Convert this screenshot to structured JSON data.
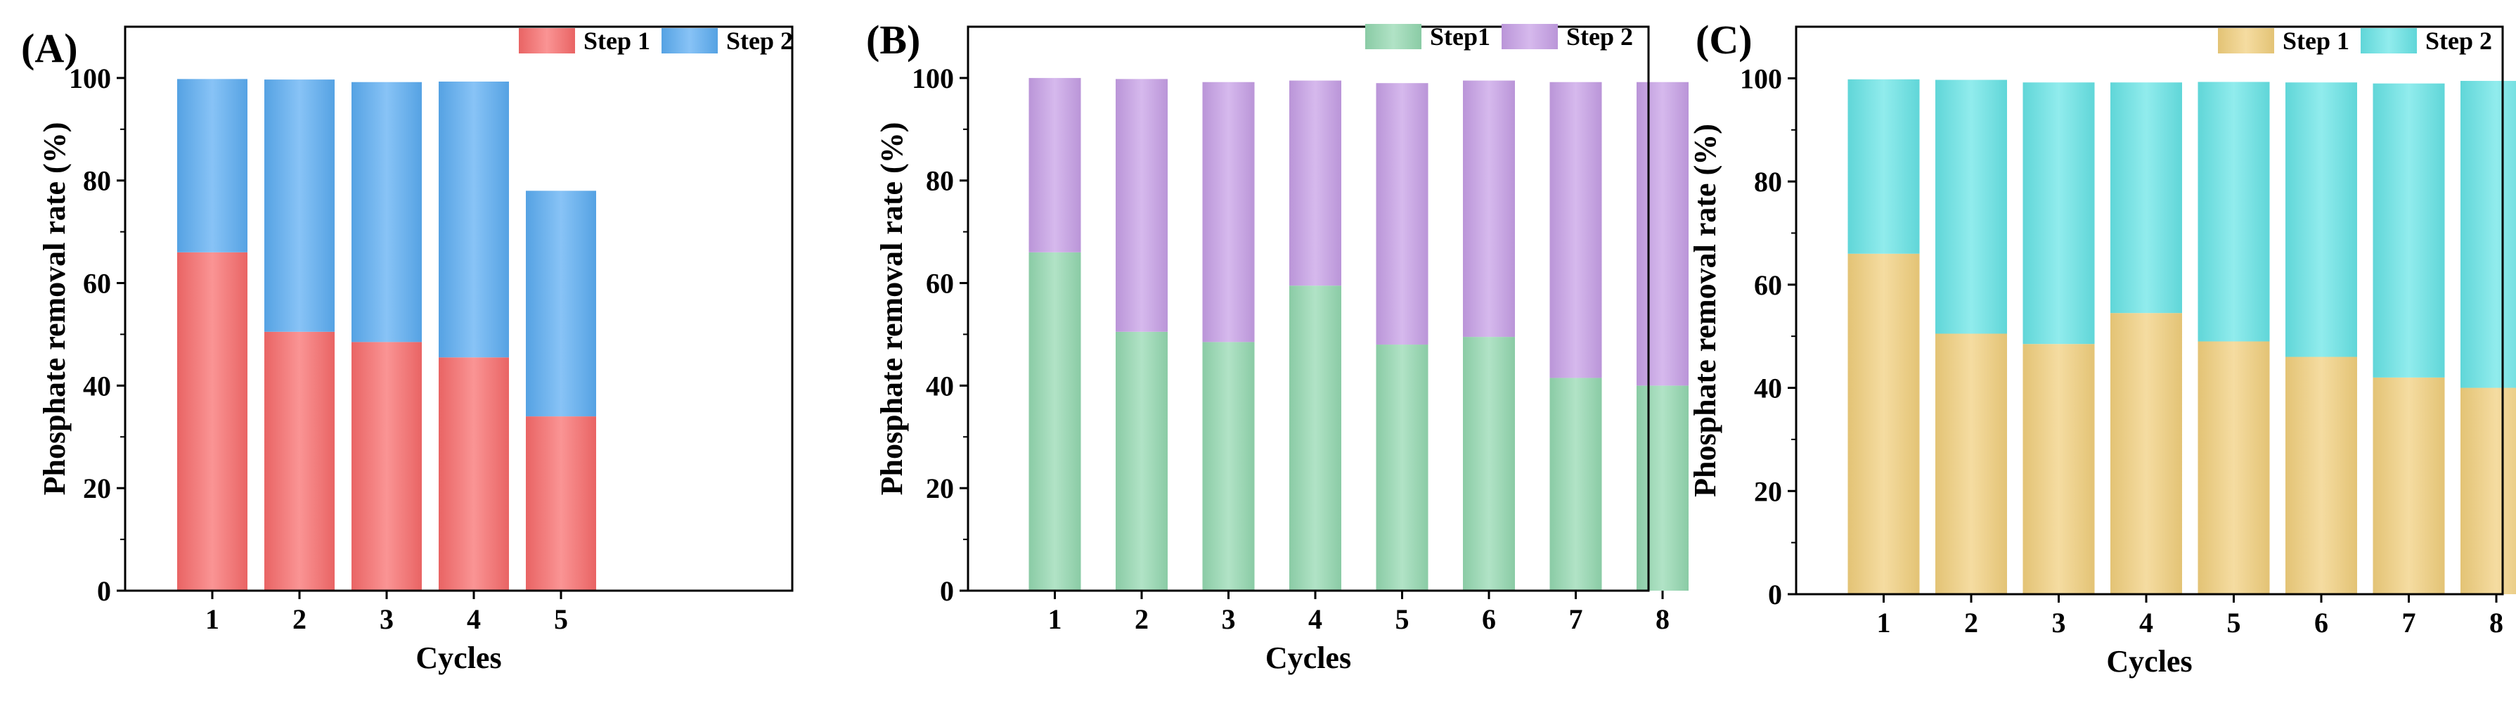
{
  "chart_data": [
    {
      "type": "bar",
      "stacked": true,
      "panel_label": "(A)",
      "categories": [
        "1",
        "2",
        "3",
        "4",
        "5"
      ],
      "series": [
        {
          "name": "Step 1",
          "values": [
            66,
            50.5,
            48.5,
            45.5,
            34
          ]
        },
        {
          "name": "Step 2",
          "values": [
            33.8,
            49.2,
            50.7,
            53.8,
            44
          ]
        }
      ],
      "xlabel": "Cycles",
      "ylabel": "Phosphate removal rate (%)",
      "ylim": [
        0,
        110
      ],
      "yticks": [
        "0",
        "20",
        "40",
        "60",
        "80",
        "100"
      ],
      "legend": "top-right",
      "colors": {
        "Step 1": "#f86a6a",
        "Step 2": "#5aacf2"
      }
    },
    {
      "type": "bar",
      "stacked": true,
      "panel_label": "(B)",
      "categories": [
        "1",
        "2",
        "3",
        "4",
        "5",
        "6",
        "7",
        "8"
      ],
      "series": [
        {
          "name": "Step1",
          "values": [
            66,
            50.5,
            48.5,
            59.5,
            48,
            49.5,
            41.5,
            40
          ]
        },
        {
          "name": "Step 2",
          "values": [
            34,
            49.3,
            50.7,
            40,
            51,
            50,
            57.7,
            59.2
          ]
        }
      ],
      "xlabel": "Cycles",
      "ylabel": "Phosphate removal rate (%)",
      "ylim": [
        0,
        110
      ],
      "yticks": [
        "0",
        "20",
        "40",
        "60",
        "80",
        "100"
      ],
      "legend": "top-right",
      "colors": {
        "Step1": "#93d8b0",
        "Step 2": "#c69ee6"
      }
    },
    {
      "type": "bar",
      "stacked": true,
      "panel_label": "(C)",
      "categories": [
        "1",
        "2",
        "3",
        "4",
        "5",
        "6",
        "7",
        "8"
      ],
      "series": [
        {
          "name": "Step 1",
          "values": [
            66,
            50.5,
            48.5,
            54.5,
            49,
            46,
            42,
            40
          ]
        },
        {
          "name": "Step 2",
          "values": [
            33.8,
            49.2,
            50.7,
            44.7,
            50.3,
            53.2,
            57,
            59.5
          ]
        }
      ],
      "xlabel": "Cycles",
      "ylabel": "Phosphate removal rate (%)",
      "ylim": [
        0,
        110
      ],
      "yticks": [
        "0",
        "20",
        "40",
        "60",
        "80",
        "100"
      ],
      "legend": "top-right",
      "colors": {
        "Step 1": "#f1cf7c",
        "Step 2": "#66e4e6"
      }
    }
  ]
}
